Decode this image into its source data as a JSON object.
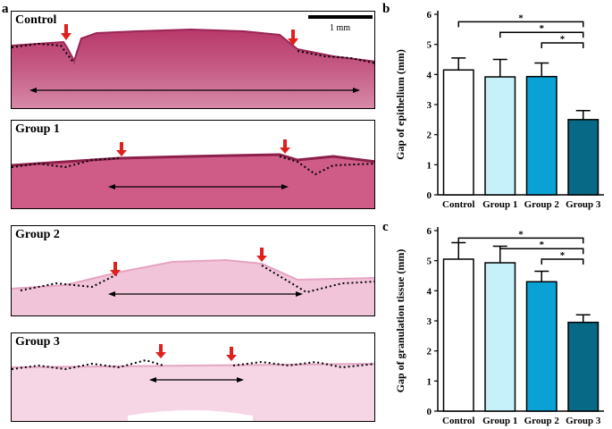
{
  "figure": {
    "panel_a_label": "a",
    "panel_b_label": "b",
    "panel_c_label": "c",
    "scale_bar_label": "1 mm"
  },
  "micrographs": [
    {
      "title": "Control"
    },
    {
      "title": "Group 1"
    },
    {
      "title": "Group 2"
    },
    {
      "title": "Group 3"
    }
  ],
  "colors": {
    "control": "#ffffff",
    "group1": "#c6f1fb",
    "group2": "#0aa1d4",
    "group3": "#086987",
    "arrow_red": "#e0201c",
    "tissue_he_dark": "#c0426e",
    "tissue_he_light": "#f2c8dc"
  },
  "chart_data": [
    {
      "type": "bar",
      "panel": "b",
      "categories": [
        "Control",
        "Group 1",
        "Group 2",
        "Group 3"
      ],
      "values": [
        4.15,
        3.92,
        3.93,
        2.5
      ],
      "errors": [
        0.4,
        0.58,
        0.45,
        0.3
      ],
      "ylabel": "Gap of epithelium (mm)",
      "xlabel": "",
      "ylim": [
        0,
        6
      ],
      "yticks": [
        "0",
        "1",
        "2",
        "3",
        "4",
        "5",
        "6"
      ],
      "significance": [
        {
          "from": "Control",
          "to": "Group 3",
          "label": "*"
        },
        {
          "from": "Group 1",
          "to": "Group 3",
          "label": "*"
        },
        {
          "from": "Group 2",
          "to": "Group 3",
          "label": "*"
        }
      ]
    },
    {
      "type": "bar",
      "panel": "c",
      "categories": [
        "Control",
        "Group 1",
        "Group 2",
        "Group 3"
      ],
      "values": [
        5.05,
        4.93,
        4.3,
        2.95
      ],
      "errors": [
        0.55,
        0.55,
        0.35,
        0.25
      ],
      "ylabel": "Gap of granulation tissue (mm)",
      "xlabel": "",
      "ylim": [
        0,
        6
      ],
      "yticks": [
        "0",
        "1",
        "2",
        "3",
        "4",
        "5",
        "6"
      ],
      "significance": [
        {
          "from": "Control",
          "to": "Group 3",
          "label": "*"
        },
        {
          "from": "Group 1",
          "to": "Group 3",
          "label": "*"
        },
        {
          "from": "Group 2",
          "to": "Group 3",
          "label": "*"
        }
      ]
    }
  ]
}
